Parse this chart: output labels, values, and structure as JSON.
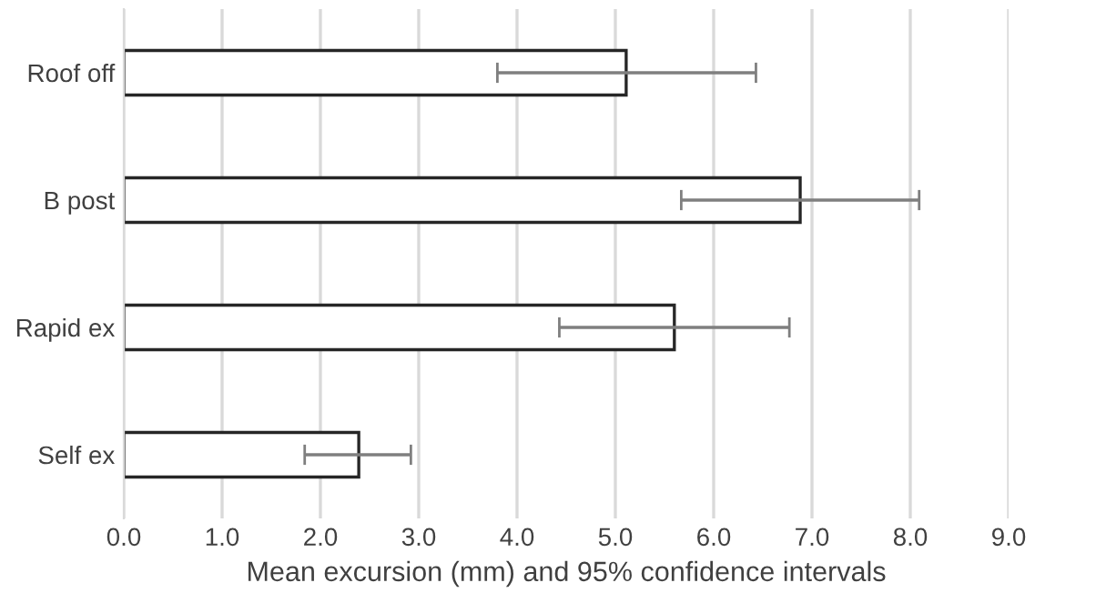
{
  "chart_data": {
    "type": "bar",
    "orientation": "horizontal",
    "xlabel": "Mean excursion (mm) and 95% confidence intervals",
    "categories": [
      "Roof off",
      "B post",
      "Rapid ex",
      "Self ex"
    ],
    "values": [
      5.11,
      6.88,
      5.6,
      2.39
    ],
    "errors": [
      [
        3.8,
        6.43
      ],
      [
        5.67,
        8.09
      ],
      [
        4.43,
        6.77
      ],
      [
        1.84,
        2.92
      ]
    ],
    "color": "#ffffff",
    "xlim": [
      0,
      9
    ],
    "xticks": [
      {
        "value": 0,
        "label": "0.0"
      },
      {
        "value": 1,
        "label": "1.0"
      },
      {
        "value": 2,
        "label": "2.0"
      },
      {
        "value": 3,
        "label": "3.0"
      },
      {
        "value": 4,
        "label": "4.0"
      },
      {
        "value": 5,
        "label": "5.0"
      },
      {
        "value": 6,
        "label": "6.0"
      },
      {
        "value": 7,
        "label": "7.0"
      },
      {
        "value": 8,
        "label": "8.0"
      },
      {
        "value": 9,
        "label": "9.0"
      }
    ],
    "grid": "x"
  }
}
